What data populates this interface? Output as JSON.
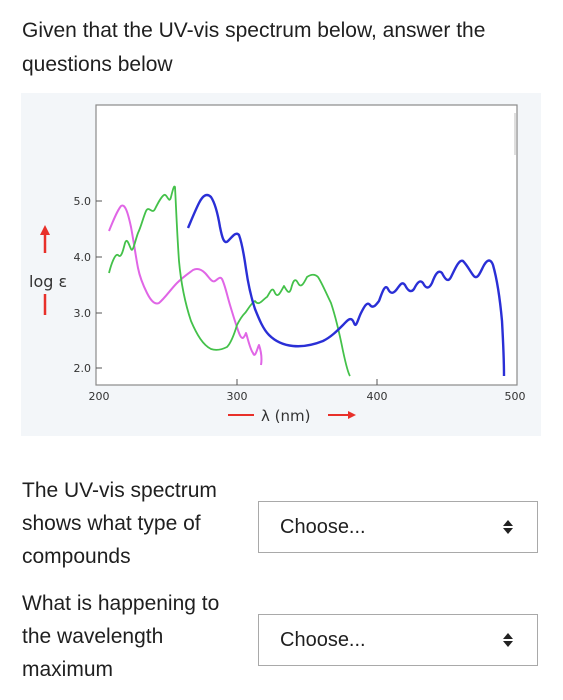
{
  "prompt": {
    "line1": "Given that the UV-vis spectrum below, answer the",
    "line2": "questions below"
  },
  "spectrum": {
    "ylabel": "log ε",
    "xlabel": "λ (nm)",
    "y_ticks": [
      "5.0",
      "4.0",
      "3.0",
      "2.0"
    ],
    "x_ticks": [
      "200",
      "300",
      "400",
      "500"
    ],
    "colors": {
      "magenta": "#e066e6",
      "green": "#44c14a",
      "blue": "#2a2fd6",
      "arrow_red": "#e8302a"
    }
  },
  "questions": [
    {
      "label_line1": "The UV-vis spectrum",
      "label_line2": "shows what type of",
      "label_line3": "compounds",
      "selected": "Choose..."
    },
    {
      "label_line1": "What is happening to",
      "label_line2": "the wavelength",
      "label_line3": "maximum",
      "selected": "Choose..."
    }
  ]
}
